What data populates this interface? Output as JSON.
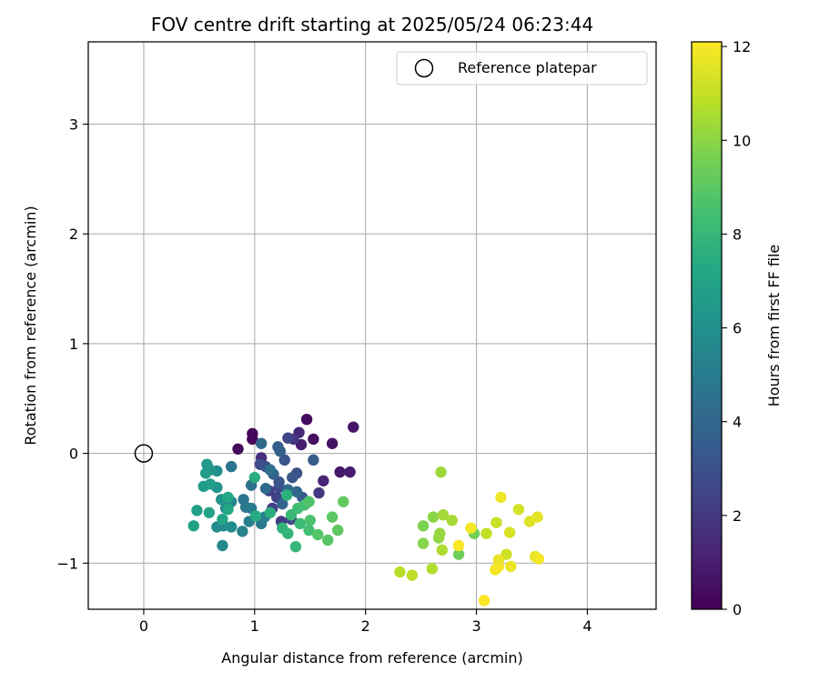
{
  "chart_data": {
    "type": "scatter",
    "title": "FOV centre drift starting at 2025/05/24 06:23:44",
    "xlabel": "Angular distance from reference (arcmin)",
    "ylabel": "Rotation from reference (arcmin)",
    "xlim": [
      -0.5,
      4.62
    ],
    "ylim": [
      -1.42,
      3.75
    ],
    "x_ticks": [
      0,
      1,
      2,
      3,
      4
    ],
    "y_ticks": [
      -1,
      0,
      1,
      2,
      3
    ],
    "x_tick_labels": [
      "0",
      "1",
      "2",
      "3",
      "4"
    ],
    "y_tick_labels": [
      "−1",
      "0",
      "1",
      "2",
      "3"
    ],
    "grid": true,
    "legend": {
      "placement": "upper-right",
      "label": "Reference platepar"
    },
    "reference_point": {
      "x": 0,
      "y": 0
    },
    "colorbar": {
      "label": "Hours from first FF file",
      "colormap": "viridis",
      "range": [
        0,
        12.1
      ],
      "ticks": [
        0,
        2,
        4,
        6,
        8,
        10,
        12
      ],
      "tick_labels": [
        "0",
        "2",
        "4",
        "6",
        "8",
        "10",
        "12"
      ]
    },
    "points": [
      [
        0.98,
        0.18,
        0.1
      ],
      [
        0.98,
        0.13,
        0.2
      ],
      [
        0.85,
        0.04,
        0.3
      ],
      [
        1.47,
        0.31,
        0.4
      ],
      [
        1.53,
        0.13,
        0.5
      ],
      [
        1.7,
        0.09,
        0.6
      ],
      [
        1.89,
        0.24,
        0.7
      ],
      [
        1.77,
        -0.17,
        0.8
      ],
      [
        1.86,
        -0.17,
        0.9
      ],
      [
        1.42,
        0.08,
        1.0
      ],
      [
        1.62,
        -0.25,
        1.2
      ],
      [
        1.4,
        0.19,
        1.4
      ],
      [
        1.06,
        -0.04,
        1.6
      ],
      [
        1.35,
        0.13,
        1.8
      ],
      [
        1.58,
        -0.36,
        2.0
      ],
      [
        1.24,
        -0.62,
        2.1
      ],
      [
        1.13,
        -0.34,
        2.2
      ],
      [
        1.16,
        -0.5,
        2.3
      ],
      [
        1.2,
        -0.4,
        2.4
      ],
      [
        1.3,
        0.14,
        2.5
      ],
      [
        1.33,
        -0.6,
        2.6
      ],
      [
        1.22,
        -0.31,
        2.7
      ],
      [
        1.05,
        -0.1,
        2.8
      ],
      [
        1.1,
        -0.12,
        2.9
      ],
      [
        1.38,
        -0.18,
        3.0
      ],
      [
        1.27,
        -0.06,
        3.1
      ],
      [
        1.22,
        -0.26,
        3.2
      ],
      [
        1.34,
        -0.22,
        3.3
      ],
      [
        1.43,
        -0.4,
        3.4
      ],
      [
        1.53,
        -0.06,
        3.5
      ],
      [
        1.21,
        0.06,
        3.6
      ],
      [
        1.23,
        0.02,
        3.7
      ],
      [
        1.17,
        -0.19,
        3.8
      ],
      [
        1.25,
        -0.46,
        3.9
      ],
      [
        1.38,
        -0.35,
        4.0
      ],
      [
        1.06,
        0.09,
        4.1
      ],
      [
        1.1,
        -0.32,
        4.2
      ],
      [
        1.3,
        -0.33,
        4.3
      ],
      [
        1.14,
        -0.15,
        4.4
      ],
      [
        0.97,
        -0.29,
        4.5
      ],
      [
        0.9,
        -0.42,
        4.6
      ],
      [
        0.79,
        -0.12,
        4.7
      ],
      [
        0.92,
        -0.49,
        4.8
      ],
      [
        1.06,
        -0.64,
        4.9
      ],
      [
        0.97,
        -0.5,
        5.0
      ],
      [
        1.09,
        -0.58,
        5.1
      ],
      [
        0.95,
        -0.62,
        5.2
      ],
      [
        0.89,
        -0.71,
        5.3
      ],
      [
        0.79,
        -0.44,
        5.4
      ],
      [
        0.74,
        -0.5,
        5.5
      ],
      [
        0.71,
        -0.84,
        5.6
      ],
      [
        0.66,
        -0.67,
        5.7
      ],
      [
        0.72,
        -0.66,
        5.8
      ],
      [
        0.79,
        -0.67,
        5.9
      ],
      [
        0.66,
        -0.16,
        6.0
      ],
      [
        0.66,
        -0.31,
        6.1
      ],
      [
        0.7,
        -0.42,
        6.2
      ],
      [
        0.6,
        -0.15,
        6.3
      ],
      [
        0.57,
        -0.1,
        6.4
      ],
      [
        0.56,
        -0.18,
        6.5
      ],
      [
        0.54,
        -0.3,
        6.6
      ],
      [
        0.6,
        -0.28,
        6.7
      ],
      [
        0.48,
        -0.52,
        6.8
      ],
      [
        0.45,
        -0.66,
        6.9
      ],
      [
        0.59,
        -0.54,
        7.0
      ],
      [
        0.71,
        -0.6,
        7.1
      ],
      [
        0.76,
        -0.51,
        7.2
      ],
      [
        0.76,
        -0.4,
        7.3
      ],
      [
        1.01,
        -0.57,
        7.4
      ],
      [
        1.0,
        -0.22,
        7.5
      ],
      [
        1.14,
        -0.54,
        7.6
      ],
      [
        1.29,
        -0.38,
        7.7
      ],
      [
        1.25,
        -0.68,
        7.8
      ],
      [
        1.3,
        -0.73,
        7.9
      ],
      [
        1.37,
        -0.85,
        8.0
      ],
      [
        1.33,
        -0.56,
        8.1
      ],
      [
        1.41,
        -0.64,
        8.2
      ],
      [
        1.39,
        -0.5,
        8.3
      ],
      [
        1.49,
        -0.7,
        8.4
      ],
      [
        1.45,
        -0.47,
        8.5
      ],
      [
        1.5,
        -0.61,
        8.6
      ],
      [
        1.49,
        -0.44,
        8.7
      ],
      [
        1.57,
        -0.74,
        8.8
      ],
      [
        1.66,
        -0.79,
        8.9
      ],
      [
        1.7,
        -0.58,
        9.0
      ],
      [
        1.75,
        -0.7,
        9.1
      ],
      [
        1.8,
        -0.44,
        9.2
      ],
      [
        2.84,
        -0.92,
        9.4
      ],
      [
        2.98,
        -0.73,
        9.5
      ],
      [
        2.52,
        -0.66,
        9.7
      ],
      [
        2.52,
        -0.82,
        9.9
      ],
      [
        2.61,
        -0.58,
        10.0
      ],
      [
        2.66,
        -0.77,
        10.1
      ],
      [
        2.67,
        -0.73,
        10.2
      ],
      [
        2.68,
        -0.17,
        10.3
      ],
      [
        2.7,
        -0.56,
        10.4
      ],
      [
        2.78,
        -0.61,
        10.5
      ],
      [
        2.69,
        -0.88,
        10.6
      ],
      [
        2.6,
        -1.05,
        10.7
      ],
      [
        2.31,
        -1.08,
        10.8
      ],
      [
        2.42,
        -1.11,
        10.9
      ],
      [
        3.09,
        -0.73,
        11.0
      ],
      [
        3.18,
        -0.63,
        11.1
      ],
      [
        3.27,
        -0.92,
        11.2
      ],
      [
        3.38,
        -0.51,
        11.3
      ],
      [
        3.3,
        -0.72,
        11.4
      ],
      [
        3.48,
        -0.62,
        11.5
      ],
      [
        3.55,
        -0.58,
        11.6
      ],
      [
        3.53,
        -0.94,
        11.7
      ],
      [
        3.22,
        -0.4,
        11.8
      ],
      [
        3.17,
        -1.06,
        11.9
      ],
      [
        3.2,
        -1.03,
        12.0
      ],
      [
        3.56,
        -0.96,
        11.9
      ],
      [
        3.31,
        -1.03,
        11.8
      ],
      [
        3.2,
        -0.97,
        11.7
      ],
      [
        3.07,
        -1.34,
        12.05
      ],
      [
        2.95,
        -0.68,
        11.9
      ],
      [
        2.84,
        -0.84,
        12.05
      ]
    ]
  }
}
